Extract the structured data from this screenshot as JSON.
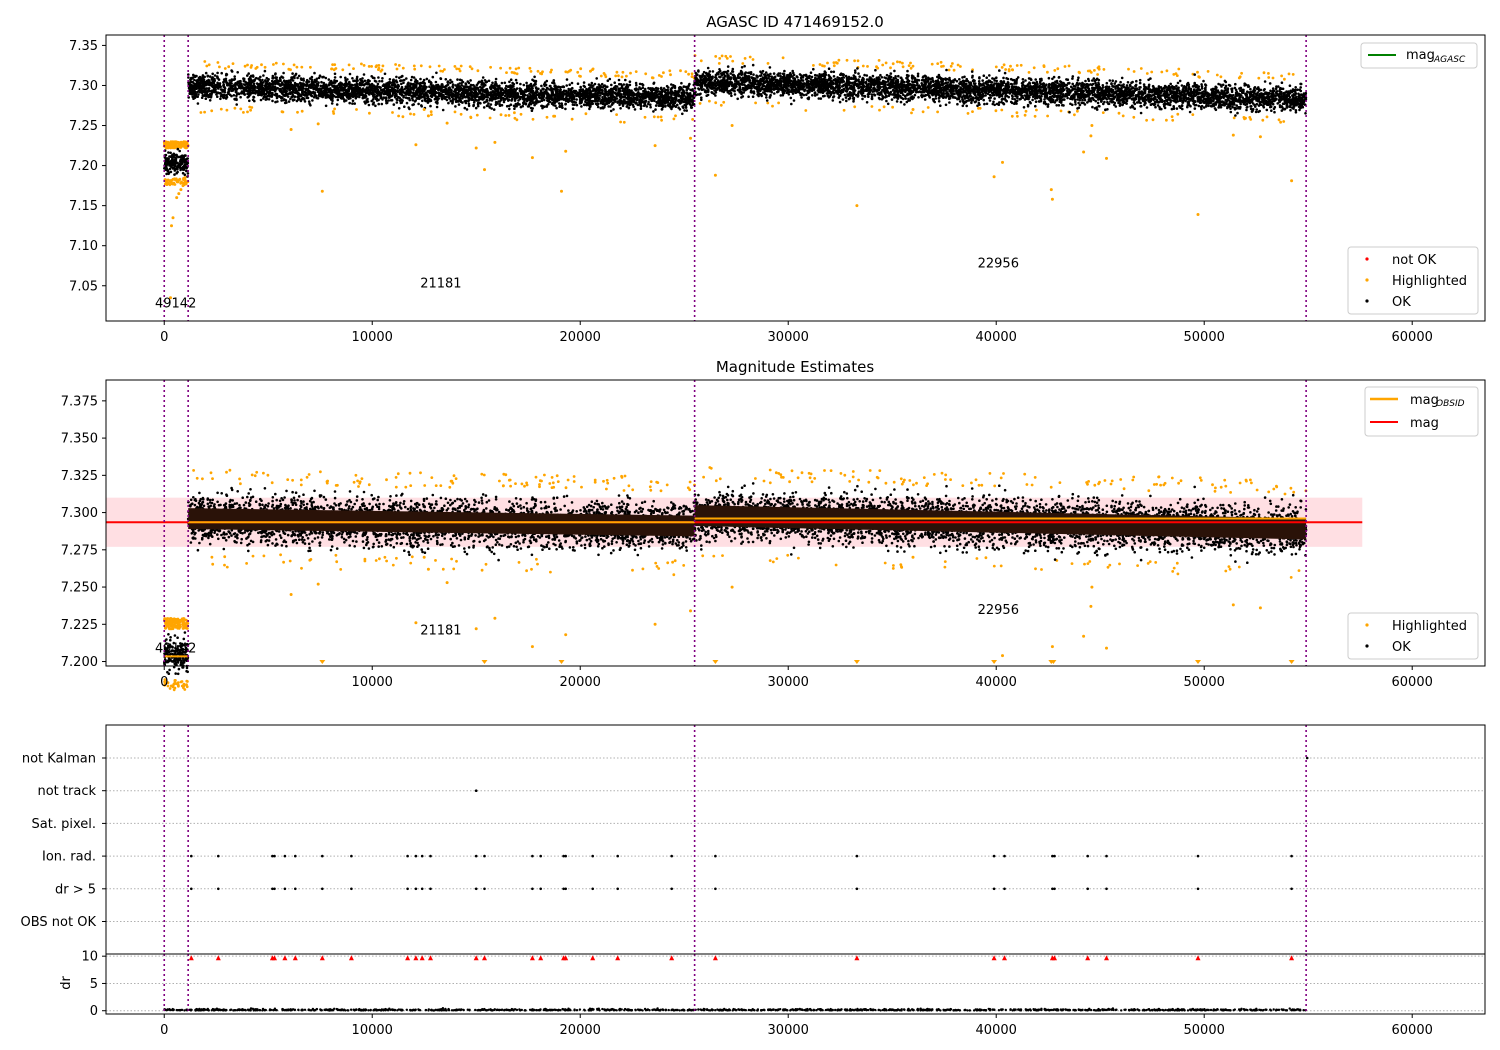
{
  "chart_data": [
    {
      "id": "top",
      "type": "scatter",
      "title": "AGASC ID 471469152.0",
      "xlim": [
        -2800,
        63500
      ],
      "ylim": [
        7.006,
        7.363
      ],
      "xticks": [
        0,
        10000,
        20000,
        30000,
        40000,
        50000,
        60000
      ],
      "xtick_labels": [
        "0",
        "10000",
        "20000",
        "30000",
        "40000",
        "50000",
        "60000"
      ],
      "yticks": [
        7.05,
        7.1,
        7.15,
        7.2,
        7.25,
        7.3,
        7.35
      ],
      "ytick_labels": [
        "7.05",
        "7.10",
        "7.15",
        "7.20",
        "7.25",
        "7.30",
        "7.35"
      ],
      "obs_boundaries": [
        0,
        1150,
        25500,
        54900
      ],
      "obs_labels": [
        {
          "text": "49142",
          "x": 550,
          "y": 7.023
        },
        {
          "text": "21181",
          "x": 13300,
          "y": 7.048
        },
        {
          "text": "22956",
          "x": 40100,
          "y": 7.073
        }
      ],
      "ok_bands": [
        {
          "x": [
            0,
            1150
          ],
          "center": 7.203,
          "spread": 0.009
        },
        {
          "x": [
            1150,
            25500
          ],
          "center": [
            7.299,
            7.285
          ],
          "spread": 0.011
        },
        {
          "x": [
            25500,
            54900
          ],
          "center": [
            7.305,
            7.283
          ],
          "spread": 0.011
        }
      ],
      "highlighted_outliers": [
        [
          300,
          7.035
        ],
        [
          350,
          7.125
        ],
        [
          420,
          7.135
        ],
        [
          600,
          7.16
        ],
        [
          700,
          7.165
        ],
        [
          800,
          7.17
        ],
        [
          900,
          7.175
        ],
        [
          1000,
          7.185
        ],
        [
          6100,
          7.245
        ],
        [
          7400,
          7.252
        ],
        [
          7600,
          7.168
        ],
        [
          12100,
          7.226
        ],
        [
          12700,
          7.262
        ],
        [
          13600,
          7.253
        ],
        [
          15000,
          7.222
        ],
        [
          15400,
          7.195
        ],
        [
          15900,
          7.229
        ],
        [
          17700,
          7.21
        ],
        [
          19100,
          7.168
        ],
        [
          19300,
          7.218
        ],
        [
          23600,
          7.225
        ],
        [
          25300,
          7.234
        ],
        [
          26500,
          7.188
        ],
        [
          27300,
          7.25
        ],
        [
          33300,
          7.15
        ],
        [
          39900,
          7.186
        ],
        [
          40300,
          7.204
        ],
        [
          42700,
          7.158
        ],
        [
          42650,
          7.17
        ],
        [
          44200,
          7.217
        ],
        [
          44600,
          7.25
        ],
        [
          44550,
          7.237
        ],
        [
          45300,
          7.209
        ],
        [
          49700,
          7.139
        ],
        [
          51400,
          7.238
        ],
        [
          52700,
          7.236
        ],
        [
          54200,
          7.181
        ],
        [
          12500,
          7.27
        ],
        [
          36000,
          7.27
        ]
      ],
      "legends": [
        {
          "position": "upper-right",
          "entries": [
            {
              "label": "mag",
              "sub": "AGASC",
              "style": "line",
              "color": "#008000"
            }
          ]
        },
        {
          "position": "lower-right",
          "entries": [
            {
              "label": "not OK",
              "style": "dot",
              "color": "#ff0000"
            },
            {
              "label": "Highlighted",
              "style": "dot",
              "color": "#ffa500"
            },
            {
              "label": "OK",
              "style": "dot",
              "color": "#000000"
            }
          ]
        }
      ]
    },
    {
      "id": "middle",
      "type": "scatter",
      "title": "Magnitude Estimates",
      "xlim": [
        -2800,
        63500
      ],
      "ylim": [
        7.197,
        7.389
      ],
      "xticks": [
        0,
        10000,
        20000,
        30000,
        40000,
        50000,
        60000
      ],
      "xtick_labels": [
        "0",
        "10000",
        "20000",
        "30000",
        "40000",
        "50000",
        "60000"
      ],
      "yticks": [
        7.2,
        7.225,
        7.25,
        7.275,
        7.3,
        7.325,
        7.35,
        7.375
      ],
      "ytick_labels": [
        "7.200",
        "7.225",
        "7.250",
        "7.275",
        "7.300",
        "7.325",
        "7.350",
        "7.375"
      ],
      "obs_boundaries": [
        0,
        1150,
        25500,
        54900
      ],
      "obs_labels": [
        {
          "text": "49142",
          "x": 550,
          "y": 7.206
        },
        {
          "text": "21181",
          "x": 13300,
          "y": 7.218
        },
        {
          "text": "22956",
          "x": 40100,
          "y": 7.232
        }
      ],
      "mag": 7.2935,
      "mag_band": [
        7.277,
        7.31
      ],
      "mag_band_x": [
        -2800,
        57600
      ],
      "mag_obsid_segments": [
        {
          "x": [
            0,
            1150
          ],
          "y": 7.2035
        },
        {
          "x": [
            1150,
            25500
          ],
          "y": 7.2935
        },
        {
          "x": [
            25500,
            54900
          ],
          "y": 7.296
        }
      ],
      "ok_bands": [
        {
          "x": [
            0,
            1150
          ],
          "center": 7.205,
          "spread": 0.008
        },
        {
          "x": [
            1150,
            25500
          ],
          "center": [
            7.296,
            7.291
          ],
          "spread": 0.011
        },
        {
          "x": [
            25500,
            54900
          ],
          "center": [
            7.298,
            7.289
          ],
          "spread": 0.011
        }
      ],
      "highlighted_outliers": [
        [
          6100,
          7.245
        ],
        [
          7400,
          7.252
        ],
        [
          12100,
          7.226
        ],
        [
          12700,
          7.262
        ],
        [
          13600,
          7.253
        ],
        [
          15000,
          7.222
        ],
        [
          15900,
          7.229
        ],
        [
          17700,
          7.21
        ],
        [
          19300,
          7.218
        ],
        [
          23600,
          7.225
        ],
        [
          25300,
          7.234
        ],
        [
          27300,
          7.25
        ],
        [
          40300,
          7.204
        ],
        [
          42700,
          7.21
        ],
        [
          44200,
          7.217
        ],
        [
          44600,
          7.25
        ],
        [
          44550,
          7.237
        ],
        [
          45300,
          7.209
        ],
        [
          51400,
          7.238
        ],
        [
          52700,
          7.236
        ],
        [
          36000,
          7.27
        ],
        [
          12500,
          7.27
        ]
      ],
      "clipped_low_markers": [
        7600,
        15400,
        19100,
        26500,
        33300,
        39900,
        42650,
        42750,
        49700,
        54200
      ],
      "legends": [
        {
          "position": "upper-right",
          "entries": [
            {
              "label": "mag",
              "sub": "OBSID",
              "style": "line",
              "color": "#ffa500"
            },
            {
              "label": "mag",
              "style": "line",
              "color": "#ff0000"
            }
          ]
        },
        {
          "position": "lower-right",
          "entries": [
            {
              "label": "Highlighted",
              "style": "dot",
              "color": "#ffa500"
            },
            {
              "label": "OK",
              "style": "dot",
              "color": "#000000"
            }
          ]
        }
      ]
    },
    {
      "id": "flags",
      "type": "scatter",
      "categories": [
        "not Kalman",
        "not track",
        "Sat. pixel.",
        "Ion. rad.",
        "dr > 5",
        "OBS not OK"
      ],
      "obs_boundaries": [
        0,
        1150,
        25500,
        54900
      ],
      "flag_points": {
        "not Kalman": [
          54950
        ],
        "not track": [
          15000
        ],
        "Ion. rad.": [
          1300,
          2600,
          5200,
          5300,
          5800,
          6300,
          7600,
          9000,
          11700,
          12100,
          12400,
          12800,
          15000,
          15400,
          17700,
          18100,
          19200,
          19300,
          20600,
          21800,
          24400,
          26500,
          33300,
          39900,
          40400,
          42700,
          42800,
          44400,
          45300,
          49700,
          54200
        ],
        "dr > 5": [
          1300,
          2600,
          5200,
          5300,
          5800,
          6300,
          7600,
          9000,
          11700,
          12100,
          12400,
          12800,
          15000,
          15400,
          17700,
          18100,
          19200,
          19300,
          20600,
          21800,
          24400,
          26500,
          33300,
          39900,
          40400,
          42700,
          42800,
          44400,
          45300,
          49700,
          54200
        ]
      }
    },
    {
      "id": "dr",
      "type": "scatter",
      "ylabel": "dr",
      "ylim": [
        -0.6,
        10.4
      ],
      "yticks": [
        0,
        5,
        10
      ],
      "ytick_labels": [
        "0",
        "5",
        "10"
      ],
      "xlim": [
        -2800,
        63500
      ],
      "xticks": [
        0,
        10000,
        20000,
        30000,
        40000,
        50000,
        60000
      ],
      "xtick_labels": [
        "0",
        "10000",
        "20000",
        "30000",
        "40000",
        "50000",
        "60000"
      ],
      "obs_boundaries": [
        0,
        1150,
        25500,
        54900
      ],
      "clipped_high_markers": [
        1300,
        2600,
        5200,
        5300,
        5800,
        6300,
        7600,
        9000,
        11700,
        12100,
        12400,
        12800,
        15000,
        15400,
        17700,
        18100,
        19200,
        19300,
        20600,
        21800,
        24400,
        26500,
        33300,
        39900,
        40400,
        42700,
        42800,
        44400,
        45300,
        49700,
        54200
      ]
    }
  ],
  "colors": {
    "ok": "#000000",
    "highlighted": "#ffa500",
    "not_ok": "#ff0000",
    "boundary": "#800080",
    "mag_line": "#ff0000",
    "mag_obsid_line": "#ffa500",
    "mag_agasc_line": "#008000",
    "mag_band": "#ffdfe3"
  }
}
